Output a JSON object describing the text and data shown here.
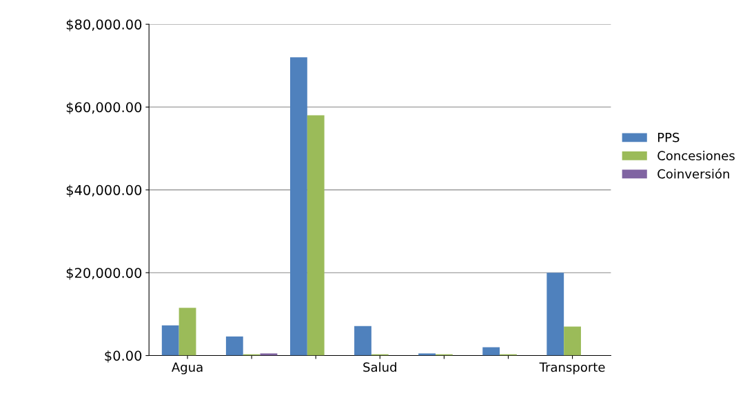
{
  "chart_data": {
    "type": "bar",
    "categories": [
      "Agua",
      null,
      null,
      "Salud",
      null,
      null,
      "Transporte"
    ],
    "series": [
      {
        "name": "PPS",
        "color": "#4f81bd",
        "values": [
          7300,
          4600,
          72000,
          7100,
          500,
          2000,
          20000
        ]
      },
      {
        "name": "Concesiones",
        "color": "#9bbb59",
        "values": [
          11500,
          300,
          58000,
          300,
          300,
          300,
          7000
        ]
      },
      {
        "name": "Coinversión",
        "color": "#8064a2",
        "values": [
          0,
          500,
          0,
          0,
          0,
          0,
          0
        ]
      }
    ],
    "ylim": [
      0,
      80000
    ],
    "yticks": [
      {
        "value": 0,
        "label": "$0.00"
      },
      {
        "value": 20000,
        "label": "$20,000.00"
      },
      {
        "value": 40000,
        "label": "$40,000.00"
      },
      {
        "value": 60000,
        "label": "$60,000.00"
      },
      {
        "value": 80000,
        "label": "$80,000.00"
      }
    ],
    "grid": "y",
    "legend": "right"
  }
}
